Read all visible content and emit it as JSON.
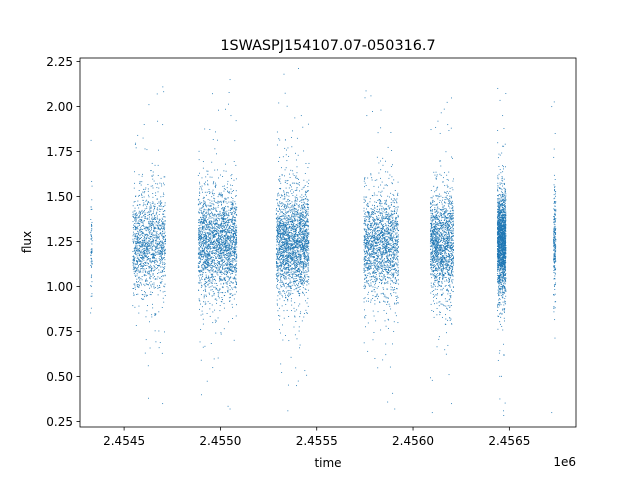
{
  "chart_data": {
    "type": "scatter",
    "title": "1SWASPJ154107.07-050316.7",
    "xlabel": "time",
    "ylabel": "flux",
    "x_offset_label": "1e6",
    "xlim": [
      2454271,
      2456846
    ],
    "ylim": [
      0.22,
      2.27
    ],
    "x_ticks": [
      {
        "value": 2454500,
        "label": "2.4545"
      },
      {
        "value": 2455000,
        "label": "2.4550"
      },
      {
        "value": 2455500,
        "label": "2.4555"
      },
      {
        "value": 2456000,
        "label": "2.4560"
      },
      {
        "value": 2456500,
        "label": "2.4565"
      }
    ],
    "y_ticks": [
      {
        "value": 0.25,
        "label": "0.25"
      },
      {
        "value": 0.5,
        "label": "0.50"
      },
      {
        "value": 0.75,
        "label": "0.75"
      },
      {
        "value": 1.0,
        "label": "1.00"
      },
      {
        "value": 1.25,
        "label": "1.25"
      },
      {
        "value": 1.5,
        "label": "1.50"
      },
      {
        "value": 1.75,
        "label": "1.75"
      },
      {
        "value": 2.0,
        "label": "2.00"
      },
      {
        "value": 2.25,
        "label": "2.25"
      }
    ],
    "grid": false,
    "marker_color": "#1f77b4",
    "series": [
      {
        "points": [
          [
            2454330,
            1.19
          ],
          [
            2454330,
            1.05
          ],
          [
            2454330,
            0.88
          ],
          [
            2454330,
            1.28
          ],
          [
            2454560,
            1.22
          ],
          [
            2454575,
            1.35
          ],
          [
            2454590,
            1.1
          ],
          [
            2454605,
            1.28
          ],
          [
            2454620,
            1.18
          ],
          [
            2454640,
            1.42
          ],
          [
            2454655,
            1.02
          ],
          [
            2454670,
            1.55
          ],
          [
            2454680,
            0.86
          ],
          [
            2454690,
            1.3
          ],
          [
            2454700,
            1.9
          ],
          [
            2454700,
            0.35
          ],
          [
            2454905,
            1.25
          ],
          [
            2454925,
            1.05
          ],
          [
            2454945,
            1.48
          ],
          [
            2454960,
            0.8
          ],
          [
            2454980,
            1.31
          ],
          [
            2455000,
            1.62
          ],
          [
            2455020,
            0.95
          ],
          [
            2455035,
            1.2
          ],
          [
            2455050,
            2.15
          ],
          [
            2455050,
            0.32
          ],
          [
            2454990,
            1.98
          ],
          [
            2454960,
            0.55
          ],
          [
            2455335,
            1.26
          ],
          [
            2455345,
            1.7
          ],
          [
            2455355,
            0.7
          ],
          [
            2455370,
            1.1
          ],
          [
            2455385,
            1.42
          ],
          [
            2455400,
            1.15
          ],
          [
            2455415,
            0.85
          ],
          [
            2455330,
            2.18
          ],
          [
            2455350,
            0.31
          ],
          [
            2455420,
            1.95
          ],
          [
            2455395,
            0.45
          ],
          [
            2455780,
            1.22
          ],
          [
            2455800,
            1.45
          ],
          [
            2455820,
            1.0
          ],
          [
            2455840,
            1.3
          ],
          [
            2455860,
            0.78
          ],
          [
            2455880,
            1.62
          ],
          [
            2455895,
            1.18
          ],
          [
            2455760,
            1.95
          ],
          [
            2455905,
            0.32
          ],
          [
            2456100,
            1.24
          ],
          [
            2456120,
            1.4
          ],
          [
            2456140,
            1.05
          ],
          [
            2456155,
            1.58
          ],
          [
            2456170,
            0.82
          ],
          [
            2456185,
            1.3
          ],
          [
            2456200,
            1.72
          ],
          [
            2456200,
            0.35
          ],
          [
            2456100,
            0.3
          ],
          [
            2456180,
            1.9
          ],
          [
            2456440,
            1.25
          ],
          [
            2456450,
            1.55
          ],
          [
            2456460,
            0.95
          ],
          [
            2456465,
            1.78
          ],
          [
            2456470,
            0.62
          ],
          [
            2456475,
            1.2
          ],
          [
            2456465,
            1.95
          ],
          [
            2456470,
            0.31
          ],
          [
            2456730,
            1.15
          ],
          [
            2456735,
            1.3
          ],
          [
            2456740,
            1.02
          ],
          [
            2456735,
            1.55
          ],
          [
            2456730,
            0.88
          ],
          [
            2456720,
            2.0
          ],
          [
            2456720,
            0.3
          ]
        ]
      }
    ],
    "clusters": [
      {
        "x_center": 2454330,
        "x_spread": 4,
        "n": 60,
        "density": "sparse"
      },
      {
        "x_center": 2454630,
        "x_spread": 85,
        "n": 1300,
        "density": "dense"
      },
      {
        "x_center": 2454985,
        "x_spread": 100,
        "n": 2200,
        "density": "dense"
      },
      {
        "x_center": 2455375,
        "x_spread": 85,
        "n": 2200,
        "density": "dense"
      },
      {
        "x_center": 2455835,
        "x_spread": 90,
        "n": 1700,
        "density": "dense"
      },
      {
        "x_center": 2456150,
        "x_spread": 60,
        "n": 1500,
        "density": "dense"
      },
      {
        "x_center": 2456460,
        "x_spread": 22,
        "n": 1800,
        "density": "very-dense"
      },
      {
        "x_center": 2456735,
        "x_spread": 6,
        "n": 220,
        "density": "sparse"
      }
    ]
  }
}
